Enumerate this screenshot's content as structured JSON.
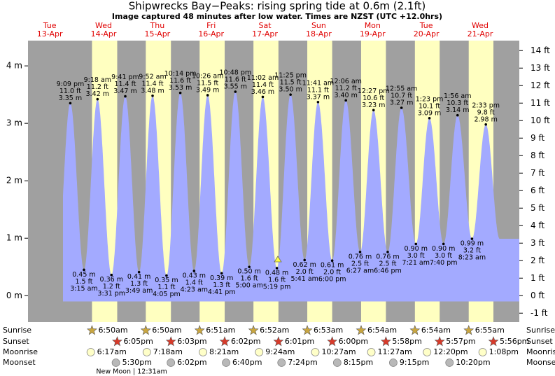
{
  "chart_data": {
    "type": "tide",
    "title": "Shipwrecks Bay−Peaks: rising  spring tide at 0.6m (2.1ft)",
    "subtitle": "Image captured 48 minutes after low water. Times are NZST (UTC +12.0hrs)",
    "ylim": [
      -0.46,
      4.44
    ],
    "yticks": [
      {
        "value": 0,
        "label": "0 m"
      },
      {
        "value": 1,
        "label": "1 m"
      },
      {
        "value": 2,
        "label": "2 m"
      },
      {
        "value": 3,
        "label": "3 m"
      },
      {
        "value": 4,
        "label": "4 m"
      }
    ],
    "y2lim": [
      -1.51,
      14.57
    ],
    "y2ticks": [
      {
        "value": -1,
        "label": "-1 ft"
      },
      {
        "value": 0,
        "label": "0 ft"
      },
      {
        "value": 1,
        "label": "1 ft"
      },
      {
        "value": 2,
        "label": "2 ft"
      },
      {
        "value": 3,
        "label": "3 ft"
      },
      {
        "value": 4,
        "label": "4 ft"
      },
      {
        "value": 5,
        "label": "5 ft"
      },
      {
        "value": 6,
        "label": "6 ft"
      },
      {
        "value": 7,
        "label": "7 ft"
      },
      {
        "value": 8,
        "label": "8 ft"
      },
      {
        "value": 9,
        "label": "9 ft"
      },
      {
        "value": 10,
        "label": "10 ft"
      },
      {
        "value": 11,
        "label": "11 ft"
      },
      {
        "value": 12,
        "label": "12 ft"
      },
      {
        "value": 13,
        "label": "13 ft"
      },
      {
        "value": 14,
        "label": "14 ft"
      }
    ],
    "color": "#a3aaff",
    "day_color": "#ffffc0",
    "night_color": "#a0a0a0",
    "tides": {
      "times": [
        "9:09 pm",
        "3:15 am",
        "9:18 am",
        "3:31 pm",
        "9:41 pm",
        "3:49 am",
        "9:52 am",
        "4:05 pm",
        "10:14 pm",
        "4:23 am",
        "10:26 am",
        "4:41 pm",
        "10:48 pm",
        "5:00 am",
        "11:02 am",
        "5:19 pm",
        "11:25 pm",
        "5:41 am",
        "11:41 am",
        "6:00 pm",
        "12:06 am",
        "6:27 am",
        "12:27 pm",
        "6:46 pm",
        "12:55 am",
        "7:21 am",
        "1:23 pm",
        "7:40 pm",
        "1:56 am",
        "8:23 am",
        "2:33 pm"
      ],
      "values": [
        3.35,
        0.45,
        3.42,
        0.36,
        3.47,
        0.41,
        3.48,
        0.35,
        3.53,
        0.43,
        3.49,
        0.39,
        3.55,
        0.5,
        3.46,
        0.48,
        3.5,
        0.62,
        3.37,
        0.61,
        3.4,
        0.76,
        3.23,
        0.76,
        3.27,
        0.9,
        3.09,
        0.9,
        3.14,
        0.99,
        2.98
      ],
      "value_labels": [
        "3.35 m",
        "0.45 m",
        "3.42 m",
        "0.36 m",
        "3.47 m",
        "0.41 m",
        "3.48 m",
        "0.35 m",
        "3.53 m",
        "0.43 m",
        "3.49 m",
        "0.39 m",
        "3.55 m",
        "0.50 m",
        "3.46 m",
        "0.48 m",
        "3.50 m",
        "0.62 m",
        "3.37 m",
        "0.61 m",
        "3.40 m",
        "0.76 m",
        "3.23 m",
        "0.76 m",
        "3.27 m",
        "0.90 m",
        "3.09 m",
        "0.90 m",
        "3.14 m",
        "0.99 m",
        "2.98 m"
      ],
      "ft_labels": [
        "11.0 ft",
        "1.5 ft",
        "11.2 ft",
        "1.2 ft",
        "11.4 ft",
        "1.3 ft",
        "11.4 ft",
        "1.1 ft",
        "11.6 ft",
        "1.4 ft",
        "11.5 ft",
        "1.3 ft",
        "11.6 ft",
        "1.6 ft",
        "11.4 ft",
        "1.6 ft",
        "11.5 ft",
        "2.0 ft",
        "11.1 ft",
        "2.0 ft",
        "11.2 ft",
        "2.5 ft",
        "10.6 ft",
        "2.5 ft",
        "10.7 ft",
        "3.0 ft",
        "10.1 ft",
        "3.0 ft",
        "10.3 ft",
        "3.2 ft",
        "9.8 ft"
      ]
    },
    "row_labels": [
      "Sunrise",
      "Sunset",
      "Moonrise",
      "Moonset"
    ],
    "days": [
      {
        "name": "Tue",
        "date": "13-Apr"
      },
      {
        "name": "Wed",
        "date": "14-Apr",
        "sunrise": "6:50am",
        "sunset": "6:05pm",
        "moonrise": "6:17am",
        "moonset": "5:30pm"
      },
      {
        "name": "Thu",
        "date": "15-Apr",
        "sunrise": "6:50am",
        "sunset": "6:03pm",
        "moonrise": "7:18am",
        "moonset": "6:02pm",
        "new_moon": "New Moon | 12:31am"
      },
      {
        "name": "Fri",
        "date": "16-Apr",
        "sunrise": "6:51am",
        "sunset": "6:02pm",
        "moonrise": "8:21am",
        "moonset": "6:40pm"
      },
      {
        "name": "Sat",
        "date": "17-Apr",
        "sunrise": "6:52am",
        "sunset": "6:01pm",
        "moonrise": "9:24am",
        "moonset": "7:24pm"
      },
      {
        "name": "Sun",
        "date": "18-Apr",
        "sunrise": "6:53am",
        "sunset": "6:00pm",
        "moonrise": "10:27am",
        "moonset": "8:15pm"
      },
      {
        "name": "Mon",
        "date": "19-Apr",
        "sunrise": "6:54am",
        "sunset": "5:58pm",
        "moonrise": "11:27am",
        "moonset": "9:15pm"
      },
      {
        "name": "Tue",
        "date": "20-Apr",
        "sunrise": "6:54am",
        "sunset": "5:57pm",
        "moonrise": "12:20pm",
        "moonset": "10:20pm"
      },
      {
        "name": "Wed",
        "date": "21-Apr",
        "sunrise": "6:55am",
        "sunset": "5:56pm",
        "moonrise": "1:08pm"
      }
    ]
  }
}
